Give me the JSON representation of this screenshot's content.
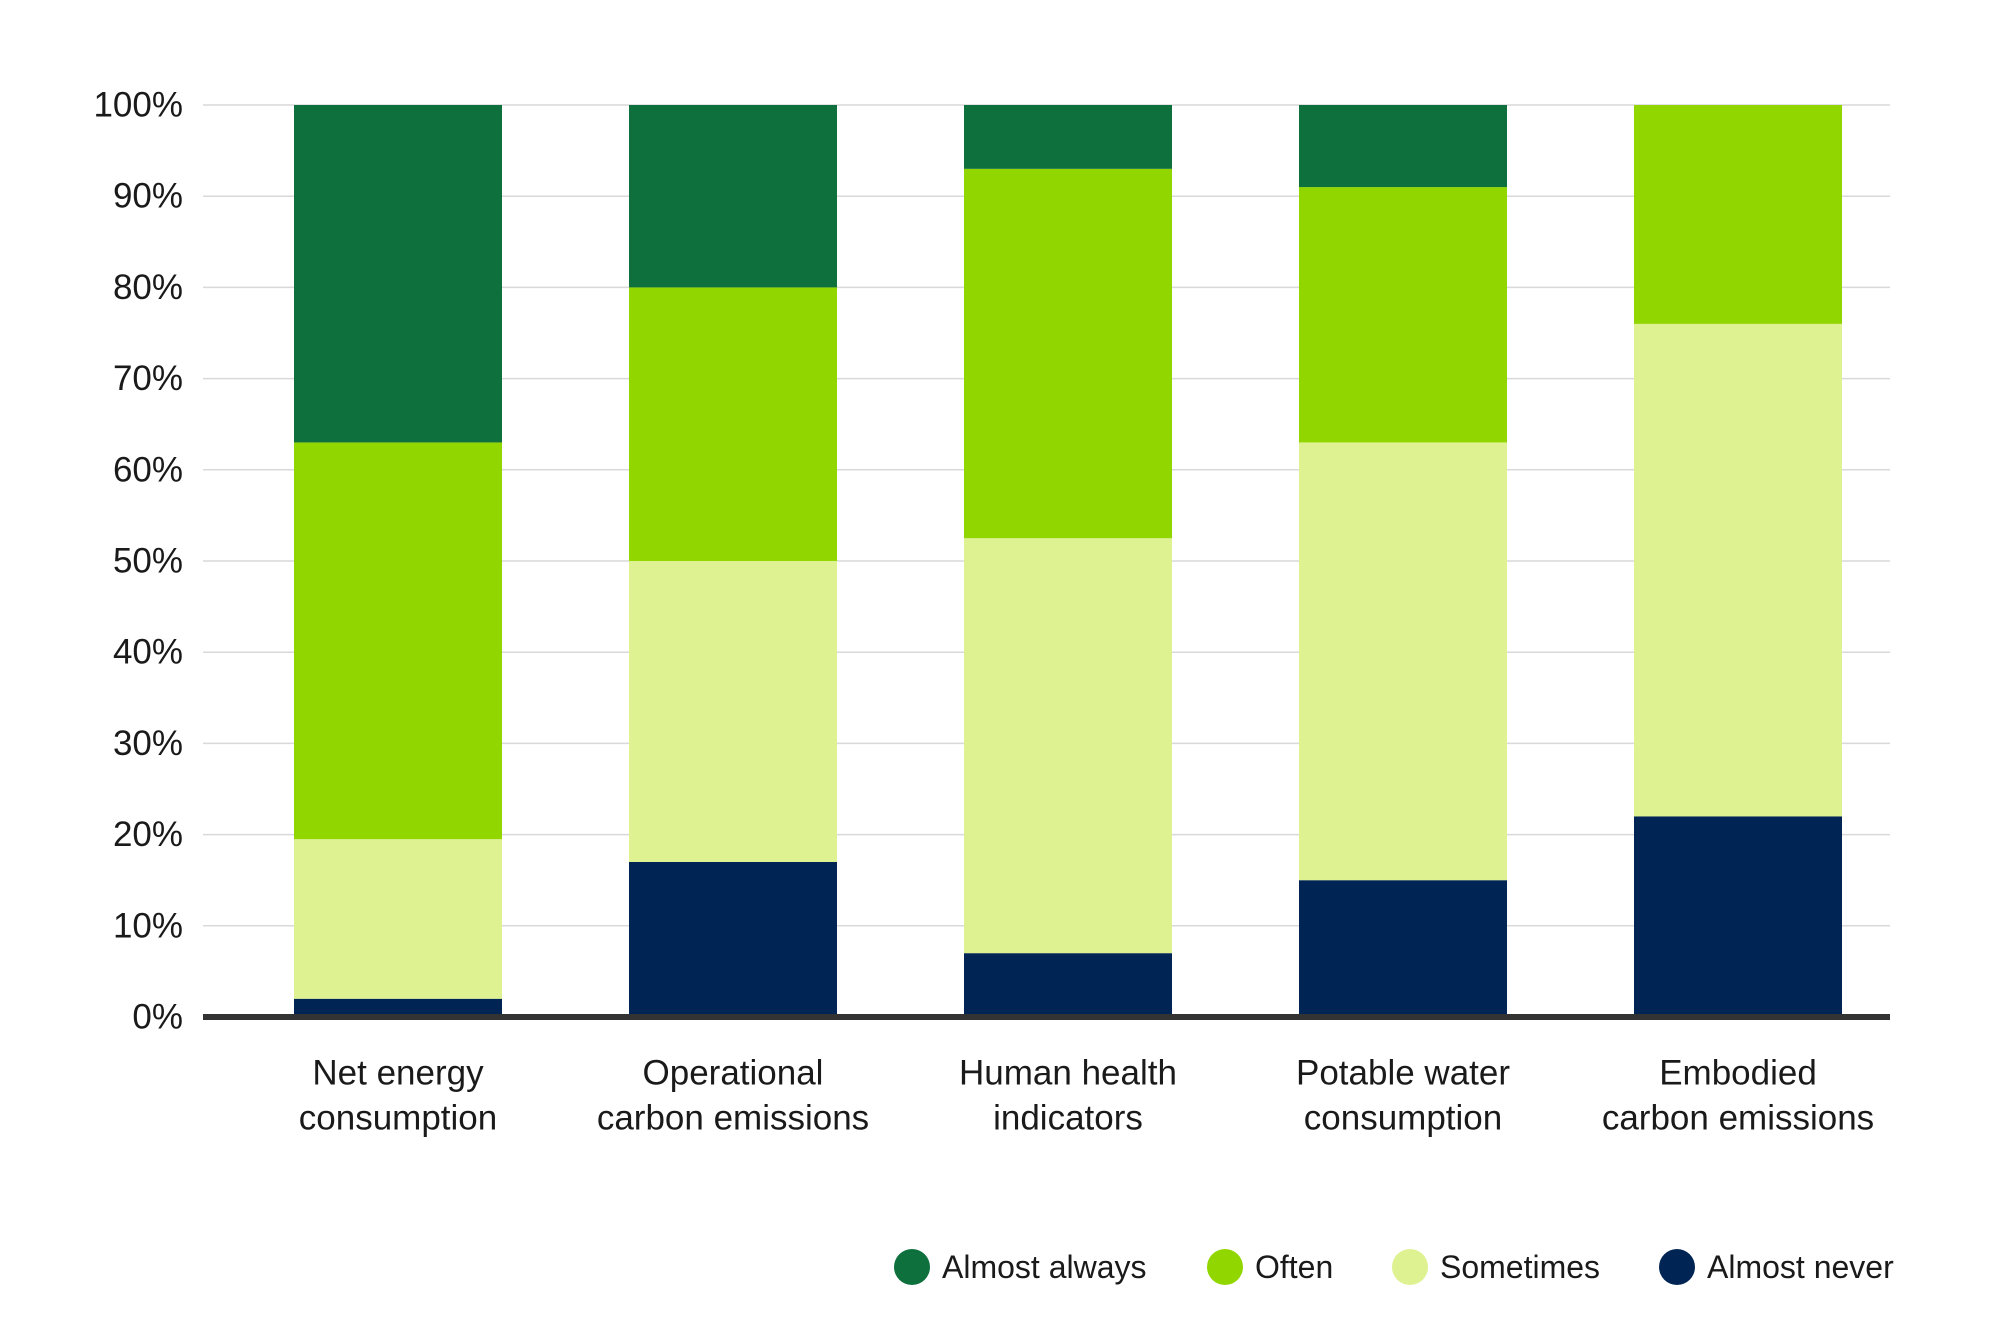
{
  "chart_data": {
    "type": "bar",
    "stacked": true,
    "categories": [
      [
        "Net energy",
        "consumption"
      ],
      [
        "Operational",
        "carbon emissions"
      ],
      [
        "Human health",
        "indicators"
      ],
      [
        "Potable water",
        "consumption"
      ],
      [
        "Embodied",
        "carbon emissions"
      ]
    ],
    "series": [
      {
        "name": "Almost never",
        "color": "#002554",
        "values": [
          2,
          17,
          7,
          15,
          22
        ]
      },
      {
        "name": "Sometimes",
        "color": "#def291",
        "values": [
          17.5,
          33,
          45.5,
          48,
          54
        ]
      },
      {
        "name": "Often",
        "color": "#92d600",
        "values": [
          43.5,
          30,
          40.5,
          28,
          24
        ]
      },
      {
        "name": "Almost always",
        "color": "#0d703d",
        "values": [
          37,
          20,
          7,
          9,
          0
        ]
      }
    ],
    "legend_order": [
      "Almost always",
      "Often",
      "Sometimes",
      "Almost never"
    ],
    "legend_position": "bottom-right",
    "yticks": [
      "0%",
      "10%",
      "20%",
      "30%",
      "40%",
      "50%",
      "60%",
      "70%",
      "80%",
      "90%",
      "100%"
    ],
    "ylim": [
      0,
      100
    ],
    "grid": true
  }
}
